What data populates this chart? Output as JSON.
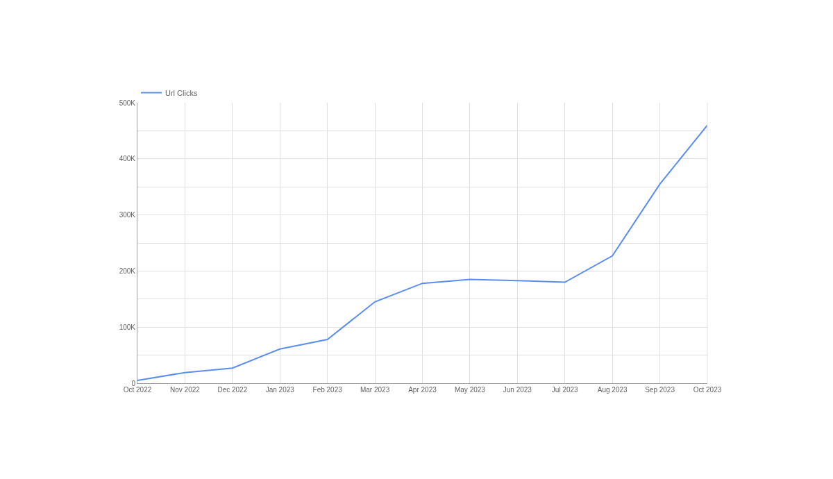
{
  "chart_data": {
    "type": "line",
    "categories": [
      "Oct 2022",
      "Nov 2022",
      "Dec 2022",
      "Jan 2023",
      "Feb 2023",
      "Mar 2023",
      "Apr 2023",
      "May 2023",
      "Jun 2023",
      "Jul 2023",
      "Aug 2023",
      "Sep 2023",
      "Oct 2023"
    ],
    "series": [
      {
        "name": "Url Clicks",
        "color": "#5b8def",
        "values": [
          5000,
          19000,
          27000,
          61000,
          78000,
          145000,
          178000,
          185000,
          183000,
          180000,
          227000,
          355000,
          460000
        ]
      }
    ],
    "ylim": [
      0,
      500000
    ],
    "yticks": [
      0,
      {
        "value": 50000,
        "label": null
      },
      {
        "value": 100000,
        "label": "100K"
      },
      {
        "value": 150000,
        "label": null
      },
      {
        "value": 200000,
        "label": "200K"
      },
      {
        "value": 250000,
        "label": null
      },
      {
        "value": 300000,
        "label": "300K"
      },
      {
        "value": 350000,
        "label": null
      },
      {
        "value": 400000,
        "label": "400K"
      },
      {
        "value": 450000,
        "label": null
      },
      {
        "value": 500000,
        "label": "500K"
      }
    ],
    "grid": true,
    "legend": "top left",
    "marker": "none",
    "line_style": "solid"
  }
}
